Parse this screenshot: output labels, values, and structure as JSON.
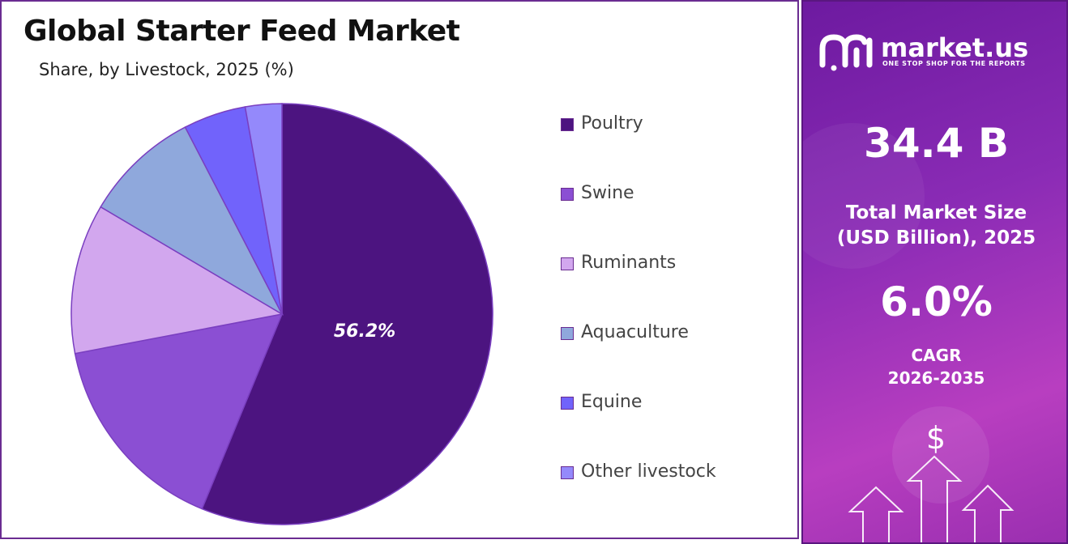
{
  "chart_data": {
    "type": "pie",
    "title": "Global Starter Feed Market",
    "subtitle": "Share, by Livestock, 2025 (%)",
    "categories": [
      "Poultry",
      "Swine",
      "Ruminants",
      "Aquaculture",
      "Equine",
      "Other livestock"
    ],
    "values": [
      56.2,
      15.8,
      11.5,
      8.9,
      4.8,
      2.8
    ],
    "colors": [
      "#4c1480",
      "#8b4fd3",
      "#d2a7ee",
      "#8fa8dc",
      "#7163fb",
      "#9489fb"
    ],
    "data_labels": [
      "56.2%",
      "",
      "",
      "",
      "",
      ""
    ],
    "legend_position": "right"
  },
  "brand": {
    "name": "market.us",
    "tagline": "ONE STOP SHOP FOR THE REPORTS"
  },
  "stats": {
    "market_size_value": "34.4 B",
    "market_size_label_1": "Total Market Size",
    "market_size_label_2": "(USD Billion), 2025",
    "cagr_value": "6.0%",
    "cagr_label_1": "CAGR",
    "cagr_label_2": "2026-2035",
    "currency_symbol": "$"
  }
}
